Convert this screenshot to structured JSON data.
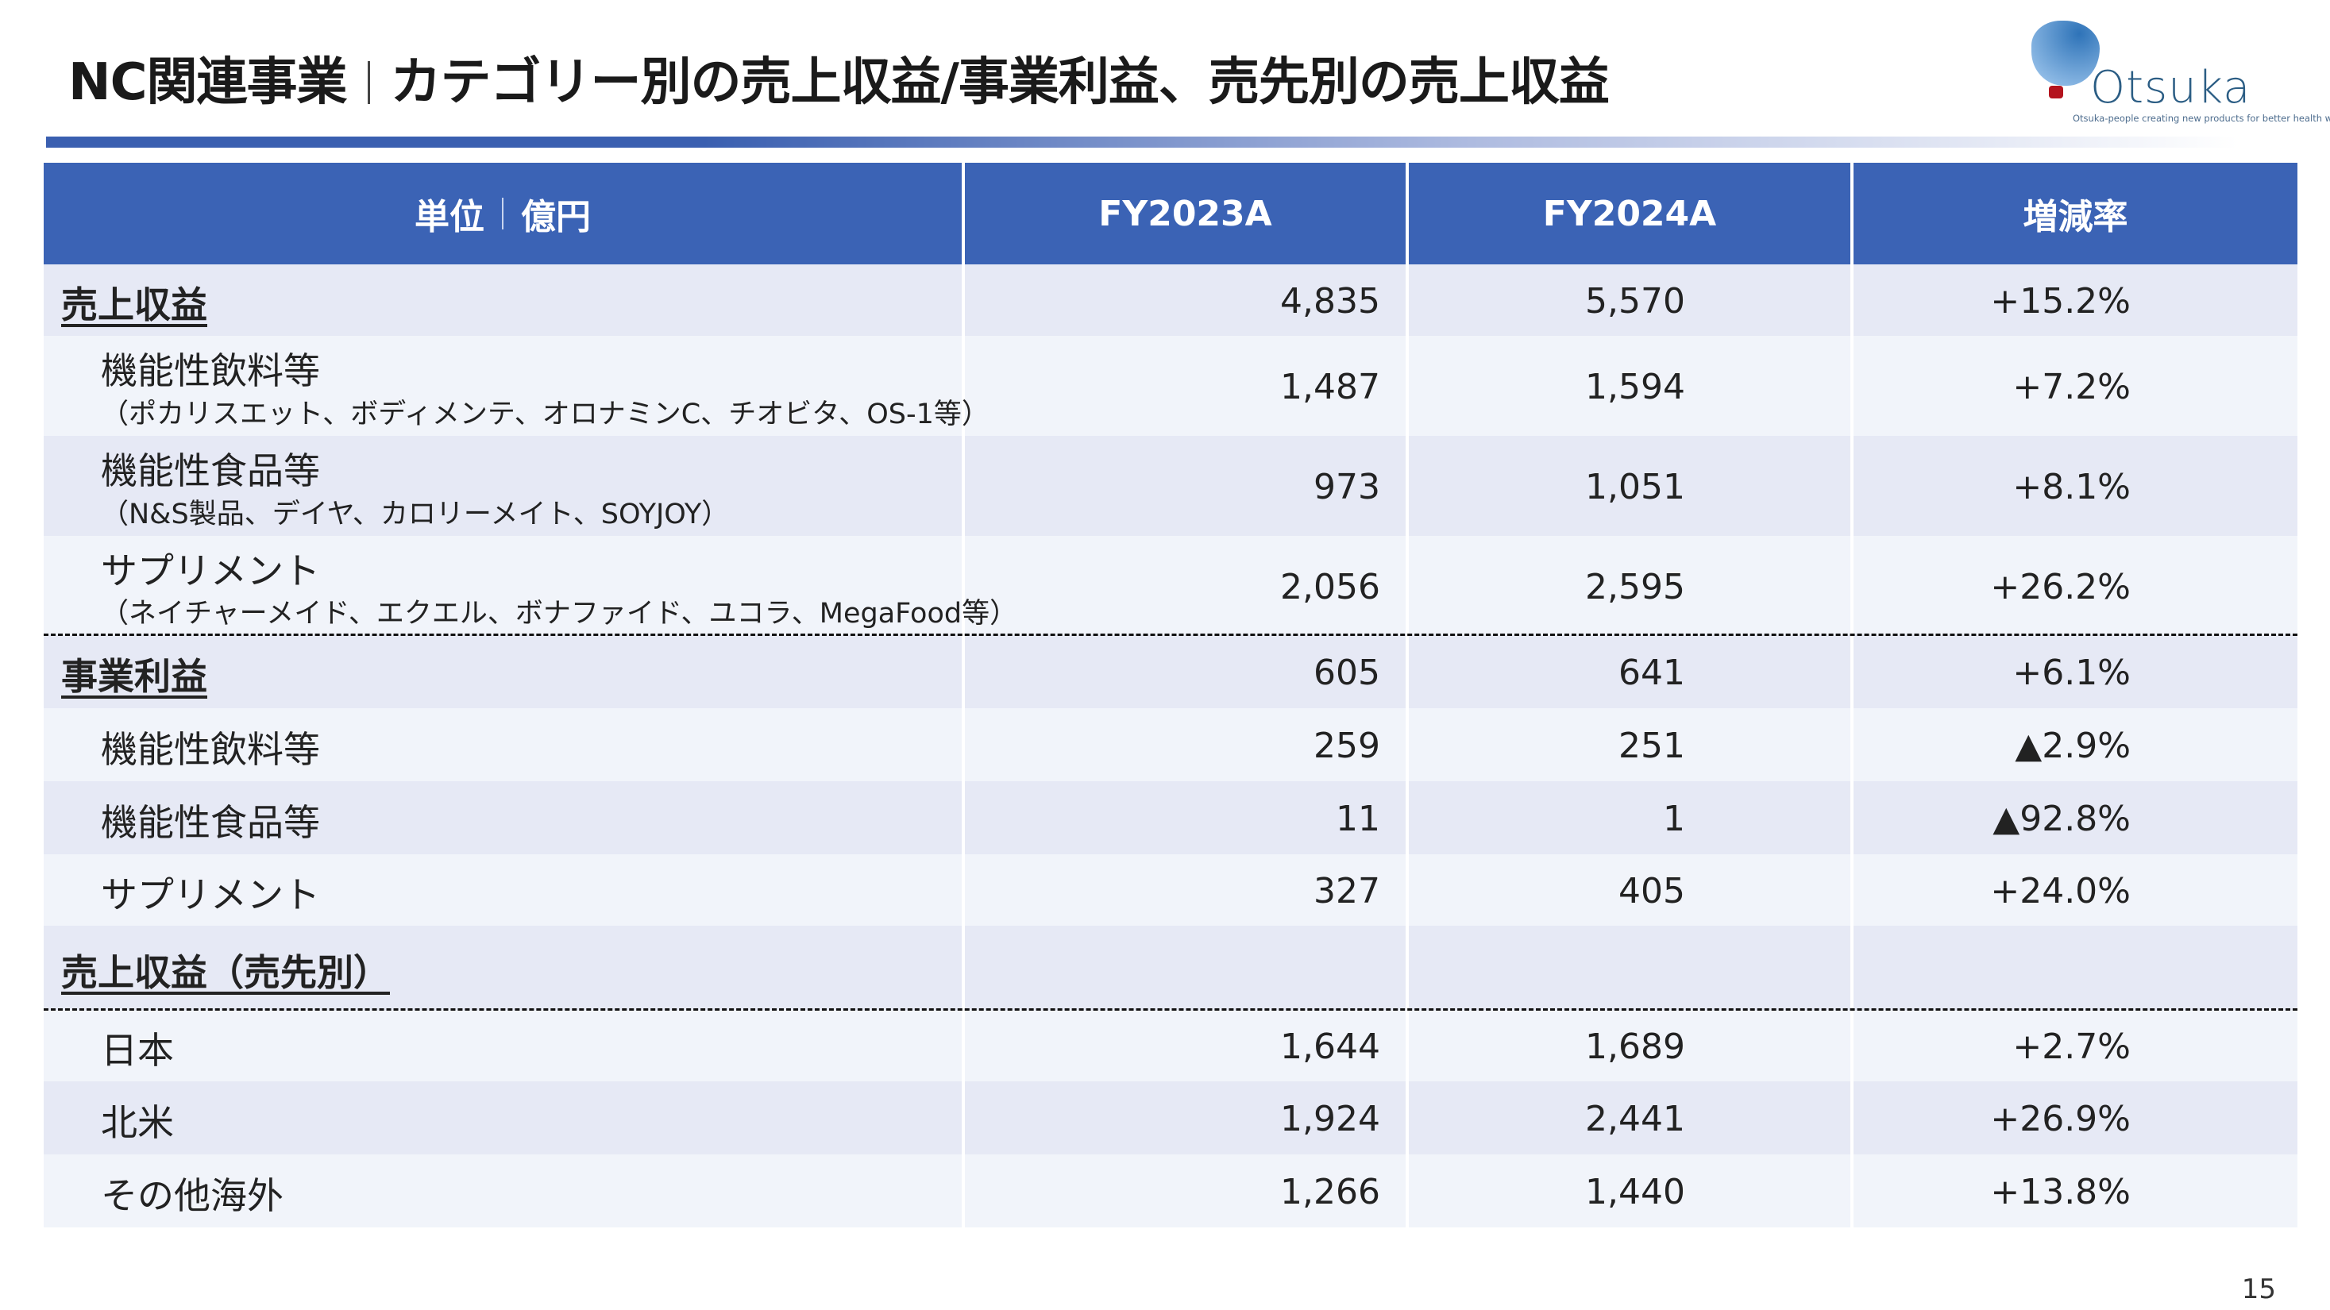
{
  "header": {
    "title_part1": "NC関連事業",
    "title_part2": "カテゴリー別の売上収益/事業利益、売先別の売上収益"
  },
  "logo": {
    "name": "Otsuka",
    "tagline": "Otsuka-people creating new products for better health worldwide",
    "colors": {
      "blob": "#3b7fc4",
      "dot": "#b4141e"
    }
  },
  "table": {
    "columns": {
      "unit_a": "単位",
      "unit_b": "億円",
      "fy2023": "FY2023A",
      "fy2024": "FY2024A",
      "change": "増減率"
    },
    "header_color": "#3b63b5",
    "rows": [
      {
        "label": "売上収益",
        "sub": "",
        "fy2023": "4,835",
        "fy2024": "5,570",
        "change": "+15.2%"
      },
      {
        "label": "機能性飲料等",
        "sub": "（ポカリスエット、ボディメンテ、オロナミンC、チオビタ、OS-1等）",
        "fy2023": "1,487",
        "fy2024": "1,594",
        "change": "+7.2%"
      },
      {
        "label": "機能性食品等",
        "sub": "（N&S製品、デイヤ、カロリーメイト、SOYJOY）",
        "fy2023": "973",
        "fy2024": "1,051",
        "change": "+8.1%"
      },
      {
        "label": "サプリメント",
        "sub": "（ネイチャーメイド、エクエル、ボナファイド、ユコラ、MegaFood等）",
        "fy2023": "2,056",
        "fy2024": "2,595",
        "change": "+26.2%"
      },
      {
        "label": "事業利益",
        "sub": "",
        "fy2023": "605",
        "fy2024": "641",
        "change": "+6.1%"
      },
      {
        "label": "機能性飲料等",
        "sub": "",
        "fy2023": "259",
        "fy2024": "251",
        "change": "▲2.9%"
      },
      {
        "label": "機能性食品等",
        "sub": "",
        "fy2023": "11",
        "fy2024": "1",
        "change": "▲92.8%"
      },
      {
        "label": "サプリメント",
        "sub": "",
        "fy2023": "327",
        "fy2024": "405",
        "change": "+24.0%"
      },
      {
        "label": "売上収益（売先別）",
        "sub": "",
        "fy2023": "",
        "fy2024": "",
        "change": ""
      },
      {
        "label": "日本",
        "sub": "",
        "fy2023": "1,644",
        "fy2024": "1,689",
        "change": "+2.7%"
      },
      {
        "label": "北米",
        "sub": "",
        "fy2023": "1,924",
        "fy2024": "2,441",
        "change": "+26.9%"
      },
      {
        "label": "その他海外",
        "sub": "",
        "fy2023": "1,266",
        "fy2024": "1,440",
        "change": "+13.8%"
      }
    ]
  },
  "footer": {
    "page_number": "15"
  }
}
